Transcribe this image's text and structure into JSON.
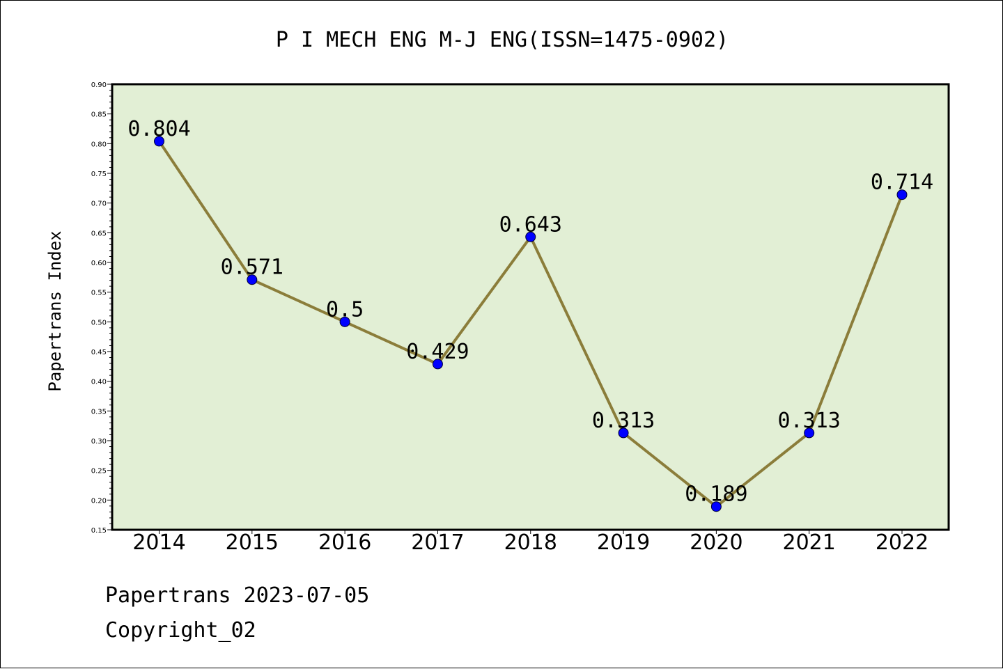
{
  "chart_data": {
    "type": "line",
    "title": "P I MECH ENG M-J ENG(ISSN=1475-0902)",
    "xlabel": "",
    "ylabel": "Papertrans Index",
    "categories": [
      "2014",
      "2015",
      "2016",
      "2017",
      "2018",
      "2019",
      "2020",
      "2021",
      "2022"
    ],
    "series": [
      {
        "values": [
          0.804,
          0.571,
          0.5,
          0.429,
          0.643,
          0.313,
          0.189,
          0.313,
          0.714
        ],
        "labels": [
          "0.804",
          "0.571",
          "0.5",
          "0.429",
          "0.643",
          "0.313",
          "0.189",
          "0.313",
          "0.714"
        ]
      }
    ],
    "ylim": [
      0.15,
      0.9
    ],
    "yticks": [
      "0.15",
      "0.20",
      "0.25",
      "0.30",
      "0.35",
      "0.40",
      "0.45",
      "0.50",
      "0.55",
      "0.60",
      "0.65",
      "0.70",
      "0.75",
      "0.80",
      "0.85",
      "0.90"
    ],
    "grid": false,
    "legend": "none",
    "colors": {
      "plot_background": "#e2efd5",
      "line": "#8b7d3a",
      "marker": "#0000ff"
    }
  },
  "footer": {
    "line1": "Papertrans 2023-07-05",
    "line2": "Copyright_02"
  }
}
